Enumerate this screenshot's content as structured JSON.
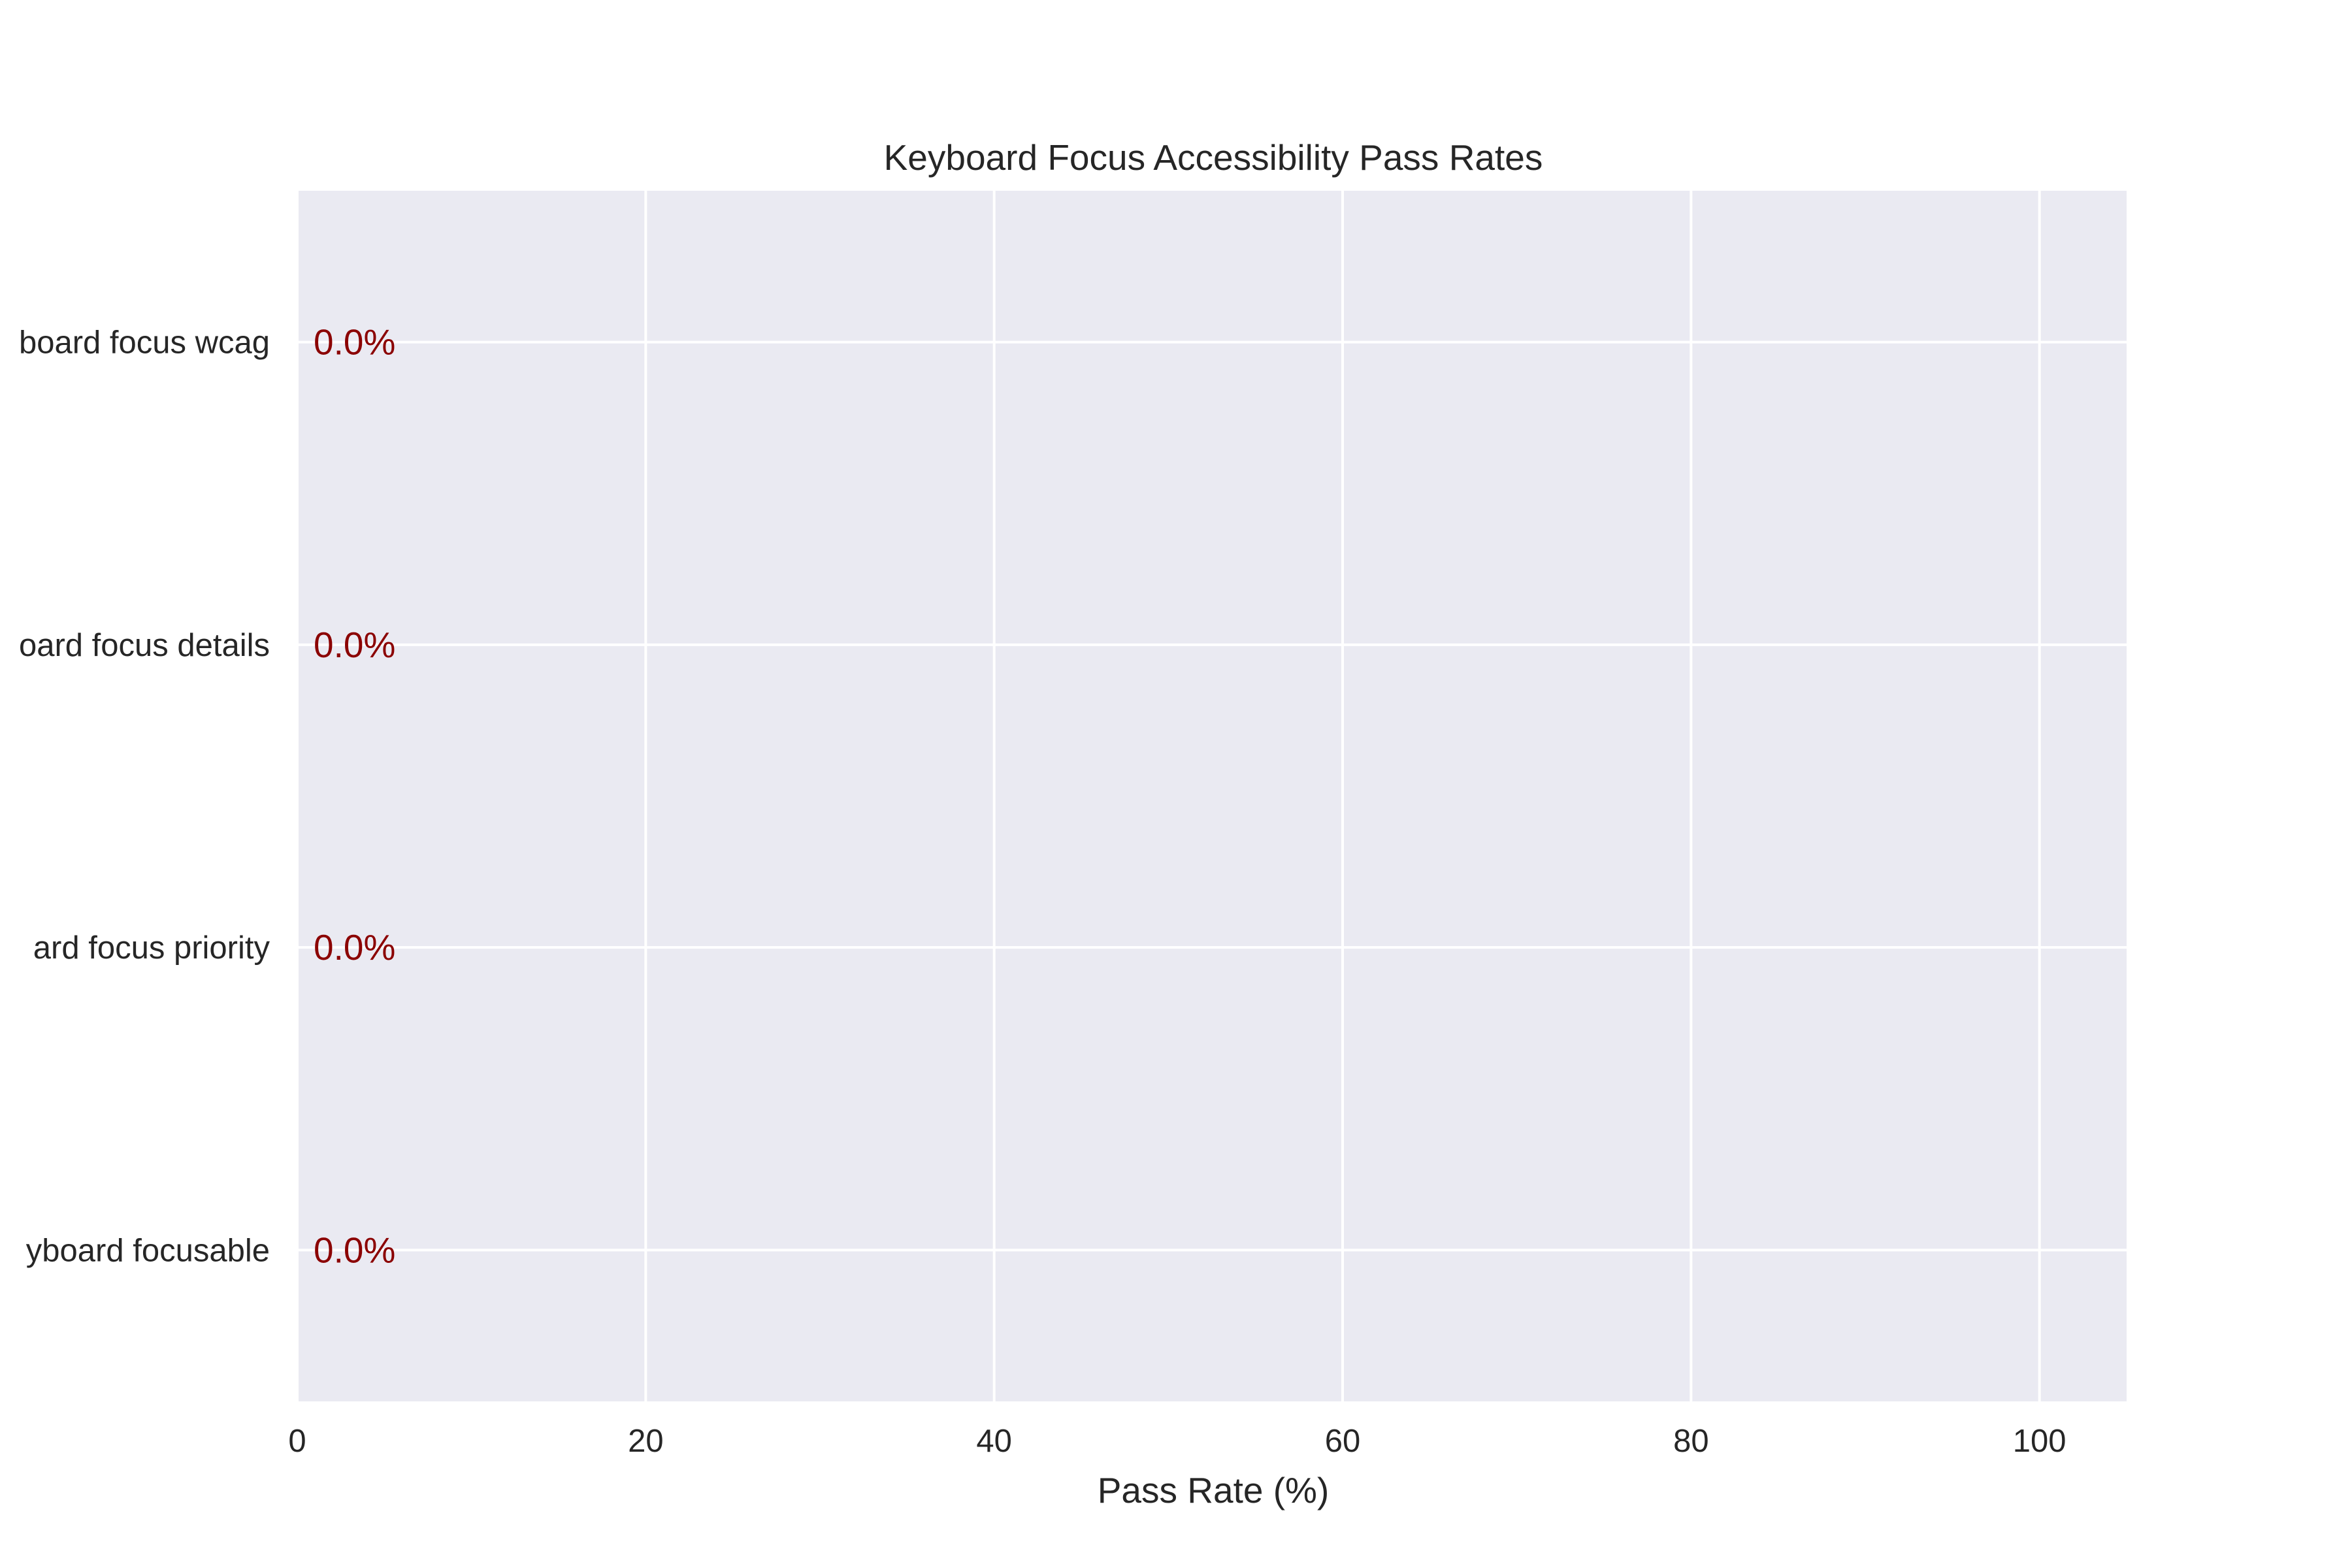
{
  "chart_data": {
    "type": "bar",
    "orientation": "horizontal",
    "title": "Keyboard Focus Accessibility Pass Rates",
    "xlabel": "Pass Rate (%)",
    "ylabel": "",
    "categories": [
      "board focus wcag",
      "oard focus details",
      "ard focus priority",
      "yboard focusable"
    ],
    "values": [
      0.0,
      0.0,
      0.0,
      0.0
    ],
    "value_labels": [
      "0.0%",
      "0.0%",
      "0.0%",
      "0.0%"
    ],
    "xlim": [
      0,
      105
    ],
    "xticks": [
      0,
      20,
      40,
      60,
      80,
      100
    ],
    "xtick_labels": [
      "0",
      "20",
      "40",
      "60",
      "80",
      "100"
    ],
    "grid": true,
    "legend": "none",
    "colors": {
      "plot_background": "#eaeaf2",
      "grid": "#ffffff",
      "value_label": "#8b0000",
      "text": "#262626"
    }
  }
}
